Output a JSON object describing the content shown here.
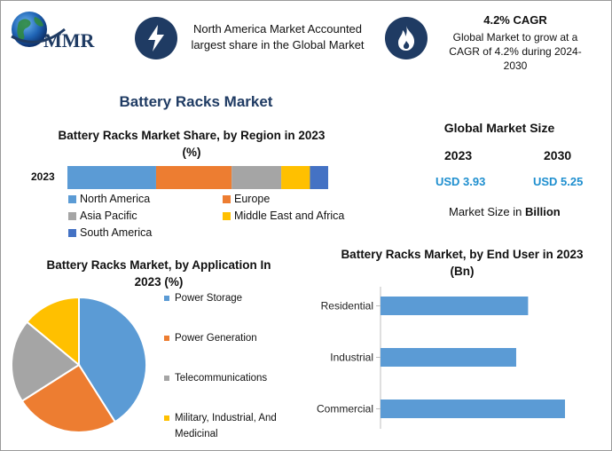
{
  "header": {
    "logo_text": "MMR",
    "info1": "North America Market Accounted largest share in the Global Market",
    "info2_title": "4.2% CAGR",
    "info2": "Global Market to grow at a CAGR of 4.2% during 2024-2030",
    "icon1": "lightning-icon",
    "icon2": "flame-icon",
    "badge_color": "#1f3b63"
  },
  "main_title": "Battery Racks Market",
  "global_size": {
    "title": "Global Market Size",
    "year1": "2023",
    "year2": "2030",
    "value1": "USD 3.93",
    "value2": "USD 5.25",
    "note_prefix": "Market Size in ",
    "note_unit": "Billion"
  },
  "chart_data": [
    {
      "type": "bar",
      "orientation": "stacked-horizontal",
      "title": "Battery Racks Market Share, by Region in 2023 (%)",
      "categories": [
        "2023"
      ],
      "series": [
        {
          "name": "North America",
          "values": [
            34
          ],
          "color": "#5b9bd5"
        },
        {
          "name": "Europe",
          "values": [
            29
          ],
          "color": "#ed7d31"
        },
        {
          "name": "Asia Pacific",
          "values": [
            19
          ],
          "color": "#a5a5a5"
        },
        {
          "name": "Middle East and Africa",
          "values": [
            11
          ],
          "color": "#ffc000"
        },
        {
          "name": "South America",
          "values": [
            7
          ],
          "color": "#4472c4"
        }
      ],
      "legend": "bottom"
    },
    {
      "type": "pie",
      "title": "Battery Racks Market, by Application In 2023 (%)",
      "labels": [
        "Power Storage",
        "Power Generation",
        "Telecommunications",
        "Military, Industrial, And Medicinal"
      ],
      "values": [
        41,
        25,
        20,
        14
      ],
      "colors": [
        "#5b9bd5",
        "#ed7d31",
        "#a5a5a5",
        "#ffc000"
      ],
      "legend": "right"
    },
    {
      "type": "bar",
      "orientation": "horizontal",
      "title": "Battery Racks Market, by End User  in 2023 (Bn)",
      "categories": [
        "Residential",
        "Industrial",
        "Commercial"
      ],
      "values": [
        1.24,
        1.14,
        1.55
      ],
      "color": "#5b9bd5",
      "xlim": [
        0,
        1.55
      ]
    }
  ]
}
